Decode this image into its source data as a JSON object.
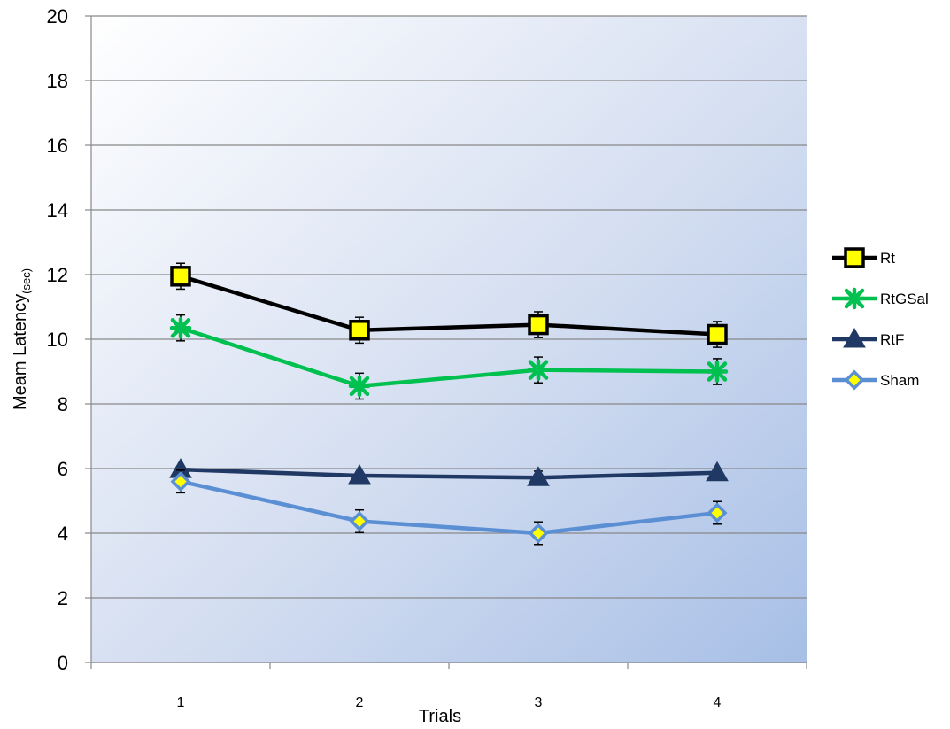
{
  "chart_data": {
    "type": "line",
    "title": "",
    "xlabel": "Trials",
    "ylabel": {
      "main": "Meam Latency",
      "sub": "(sec)"
    },
    "categories": [
      "1",
      "2",
      "3",
      "4"
    ],
    "ylim": [
      0,
      20
    ],
    "yticks": [
      0,
      2,
      4,
      6,
      8,
      10,
      12,
      14,
      16,
      18,
      20
    ],
    "grid": true,
    "legend_position": "right",
    "series": [
      {
        "name": "Rt",
        "values": [
          11.95,
          10.28,
          10.45,
          10.15
        ],
        "errors": [
          0.4,
          0.4,
          0.4,
          0.4
        ],
        "color": "#000000",
        "marker": "square",
        "marker_fill": "#ffff00"
      },
      {
        "name": "RtGSal",
        "values": [
          10.35,
          8.55,
          9.05,
          9.0
        ],
        "errors": [
          0.4,
          0.4,
          0.4,
          0.4
        ],
        "color": "#00c050",
        "marker": "x"
      },
      {
        "name": "RtF",
        "values": [
          5.97,
          5.78,
          5.72,
          5.87
        ],
        "errors": [
          0.1,
          0.1,
          0.2,
          0.1
        ],
        "color": "#1f3864",
        "marker": "triangle"
      },
      {
        "name": "Sham",
        "values": [
          5.6,
          4.37,
          4.0,
          4.63
        ],
        "errors": [
          0.35,
          0.35,
          0.35,
          0.35
        ],
        "color": "#5b8fd4",
        "marker": "diamond",
        "marker_fill": "#ffff00"
      }
    ]
  }
}
